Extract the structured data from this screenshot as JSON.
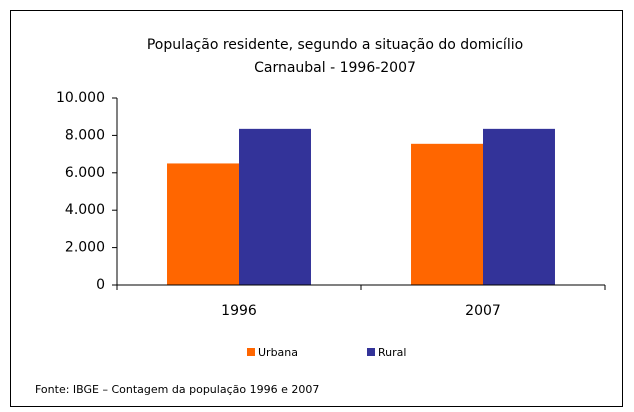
{
  "chart_data": {
    "type": "bar",
    "title": "População residente, segundo a situação do domicílio",
    "subtitle": "Carnaubal - 1996-2007",
    "categories": [
      "1996",
      "2007"
    ],
    "series": [
      {
        "name": "Urbana",
        "color": "#ff6600",
        "values": [
          6500,
          7550
        ]
      },
      {
        "name": "Rural",
        "color": "#333399",
        "values": [
          8350,
          8350
        ]
      }
    ],
    "ylim": [
      0,
      10000
    ],
    "yticks": [
      0,
      {
        "value": 2000,
        "label": "2.000"
      },
      {
        "value": 4000,
        "label": "4.000"
      },
      {
        "value": 6000,
        "label": "6.000"
      },
      {
        "value": 8000,
        "label": "8.000"
      },
      {
        "value": 10000,
        "label": "10.000"
      }
    ],
    "legend": "bottom",
    "source": "Fonte: IBGE – Contagem da população 1996 e 2007"
  }
}
